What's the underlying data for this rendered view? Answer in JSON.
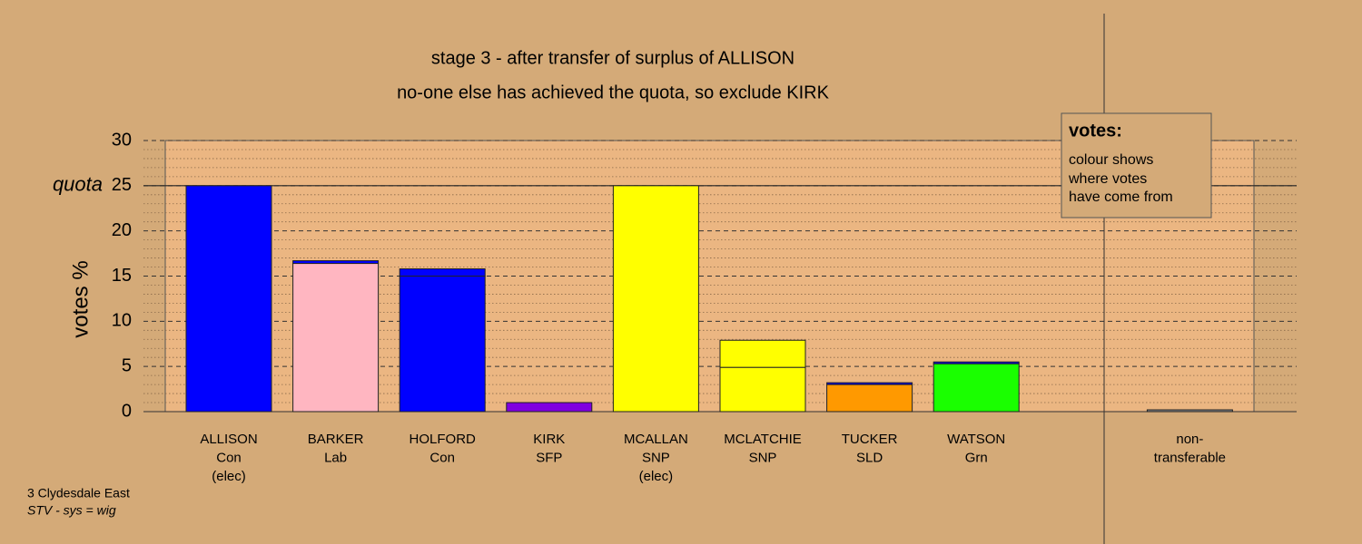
{
  "chart_data": {
    "type": "stacked-bar",
    "title": "stage 3 - after transfer of surplus of ALLISON",
    "subtitle": "no-one else has achieved the quota, so exclude KIRK",
    "y_label": "votes %",
    "quota": 25,
    "quota_label": "quota",
    "ylim": [
      0,
      30
    ],
    "yticks": [
      0,
      5,
      10,
      15,
      20,
      25,
      30
    ],
    "minor_yticks": [
      1,
      2,
      3,
      4,
      6,
      7,
      8,
      9,
      11,
      12,
      13,
      14,
      16,
      17,
      18,
      19,
      21,
      22,
      23,
      24,
      26,
      27,
      28,
      29
    ],
    "categories": [
      [
        "ALLISON",
        "Con",
        "(elec)"
      ],
      [
        "BARKER",
        "Lab"
      ],
      [
        "HOLFORD",
        "Con"
      ],
      [
        "KIRK",
        "SFP"
      ],
      [
        "MCALLAN",
        "SNP",
        "(elec)"
      ],
      [
        "MCLATCHIE",
        "SNP"
      ],
      [
        "TUCKER",
        "SLD"
      ],
      [
        "WATSON",
        "Grn"
      ],
      null,
      [
        "non-",
        "transferable"
      ]
    ],
    "segments": [
      [
        {
          "value": 25,
          "color": "#0000ff"
        }
      ],
      [
        {
          "value": 16.4,
          "color": "#ffb6c1"
        },
        {
          "value": 0.3,
          "color": "#0000ff"
        }
      ],
      [
        {
          "value": 15,
          "color": "#0000ff"
        },
        {
          "value": 0.8,
          "color": "#0000ff"
        }
      ],
      [
        {
          "value": 1,
          "color": "#8000e0"
        }
      ],
      [
        {
          "value": 25,
          "color": "#ffff00"
        }
      ],
      [
        {
          "value": 4.9,
          "color": "#ffff00"
        },
        {
          "value": 3.0,
          "color": "#ffff00"
        }
      ],
      [
        {
          "value": 3.0,
          "color": "#ff9900"
        },
        {
          "value": 0.2,
          "color": "#0000ff"
        }
      ],
      [
        {
          "value": 5.3,
          "color": "#1aff00"
        },
        {
          "value": 0.2,
          "color": "#0000ff"
        }
      ],
      [],
      [
        {
          "value": 0.2,
          "color": "#888888"
        }
      ]
    ],
    "legend": {
      "title": "votes:",
      "lines": [
        "colour shows",
        "where votes",
        "have come from"
      ]
    },
    "footer": {
      "constituency": "3 Clydesdale East",
      "system": "STV - sys = wig"
    }
  }
}
